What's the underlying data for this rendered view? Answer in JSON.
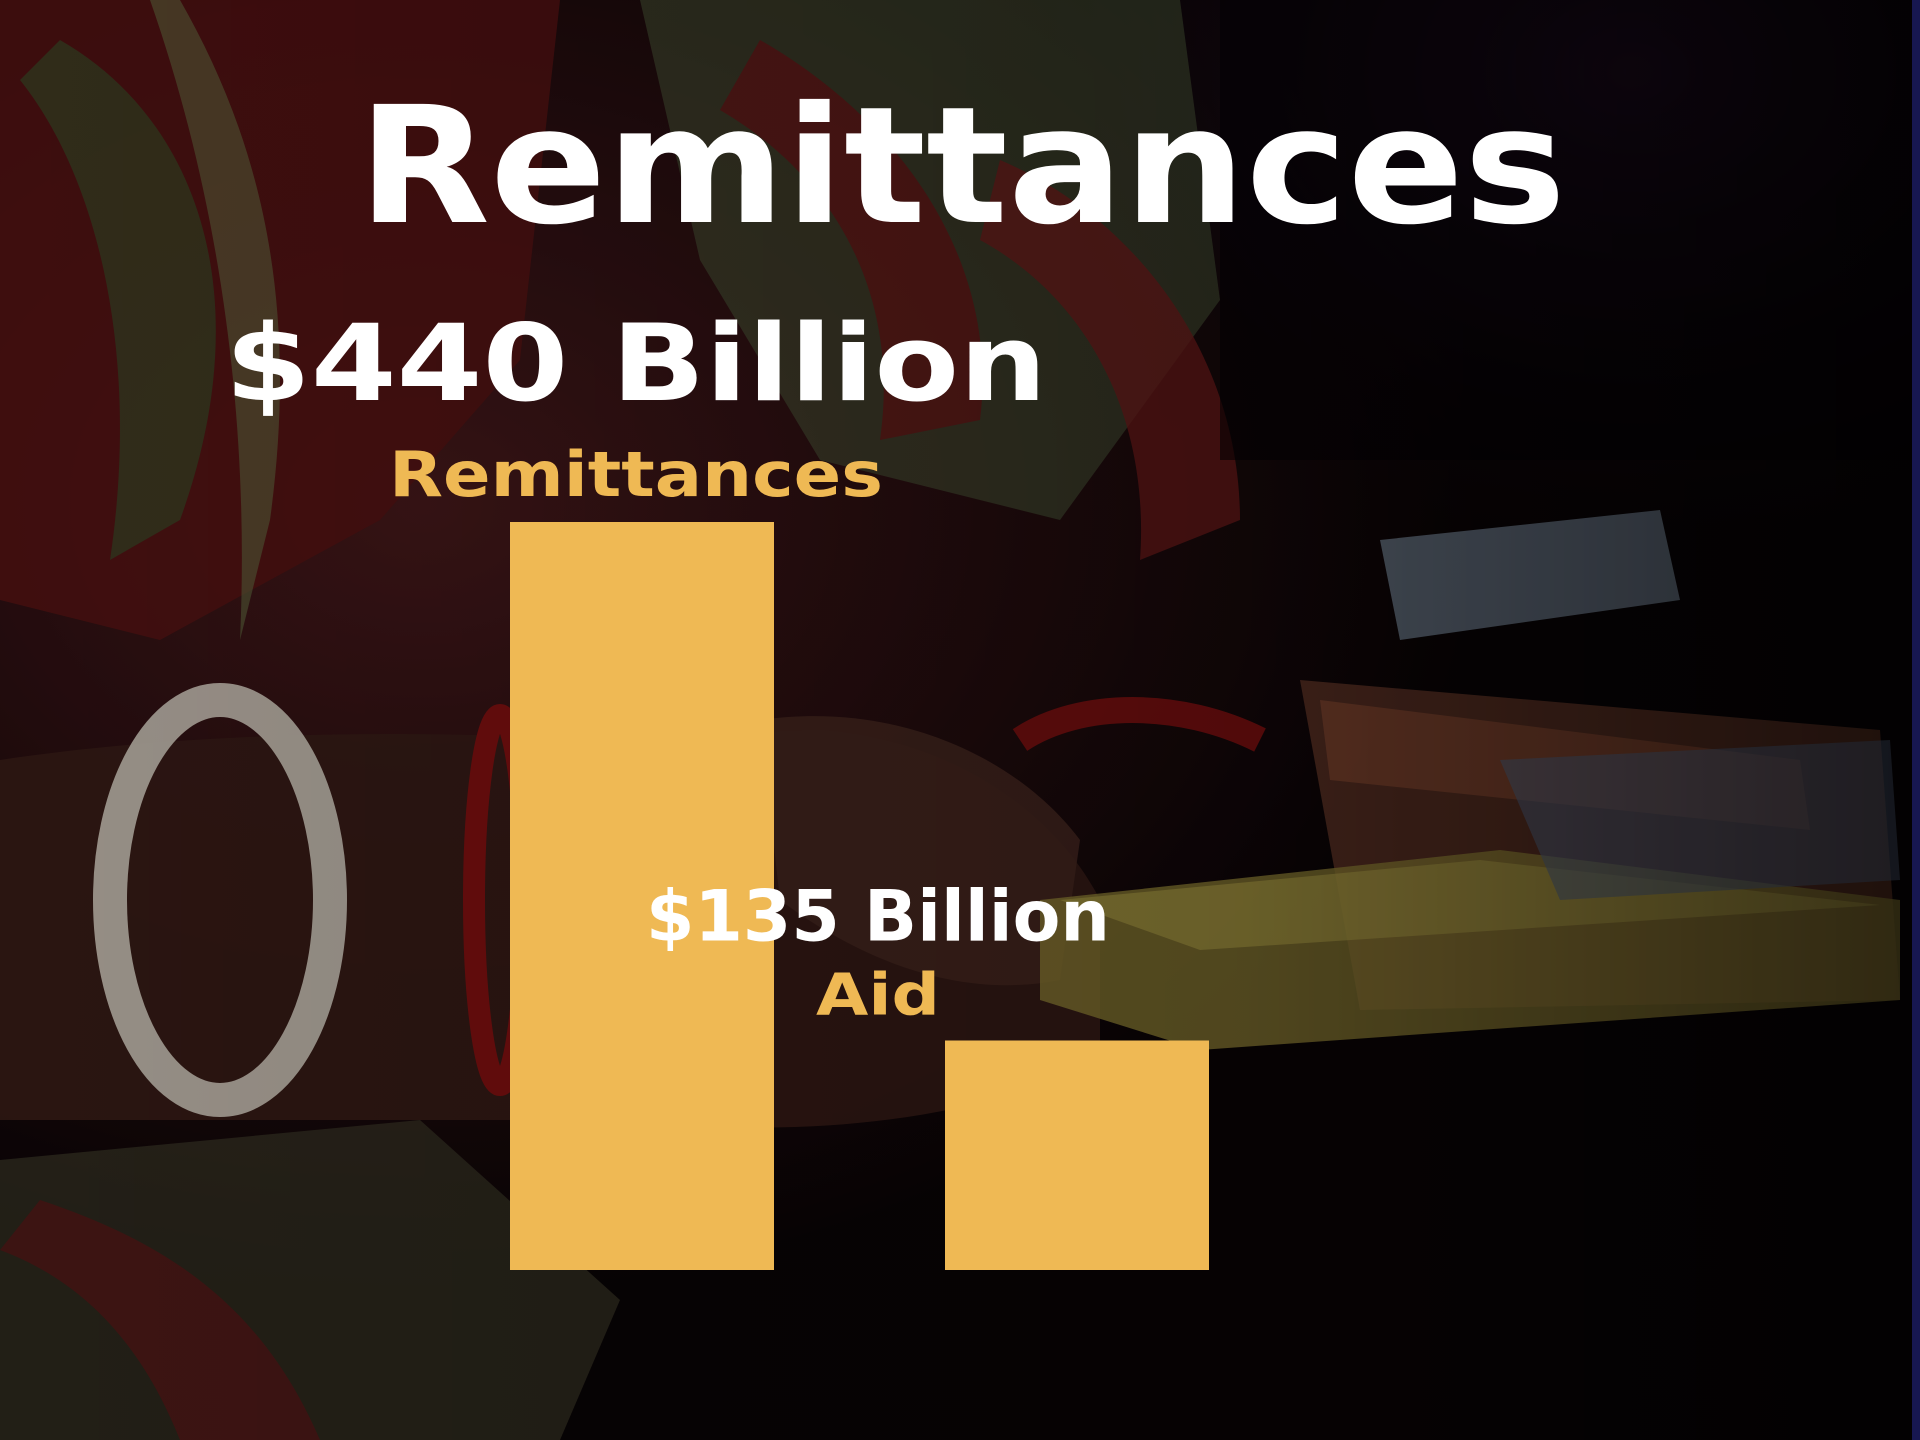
{
  "slide": {
    "title": "Remittances"
  },
  "colors": {
    "bar": "#EFB954",
    "category_label": "#EFB954",
    "value_label": "#FFFFFF",
    "title": "#FFFFFF",
    "background": "#0A0406"
  },
  "chart_data": {
    "type": "bar",
    "title": "Remittances",
    "categories": [
      "Remittances",
      "Aid"
    ],
    "values": [
      440,
      135
    ],
    "value_labels": [
      "$440 Billion",
      "$135 Billion"
    ],
    "unit": "Billion USD",
    "xlabel": "",
    "ylabel": "",
    "ylim": [
      0,
      440
    ],
    "grid": false,
    "legend": "none"
  }
}
